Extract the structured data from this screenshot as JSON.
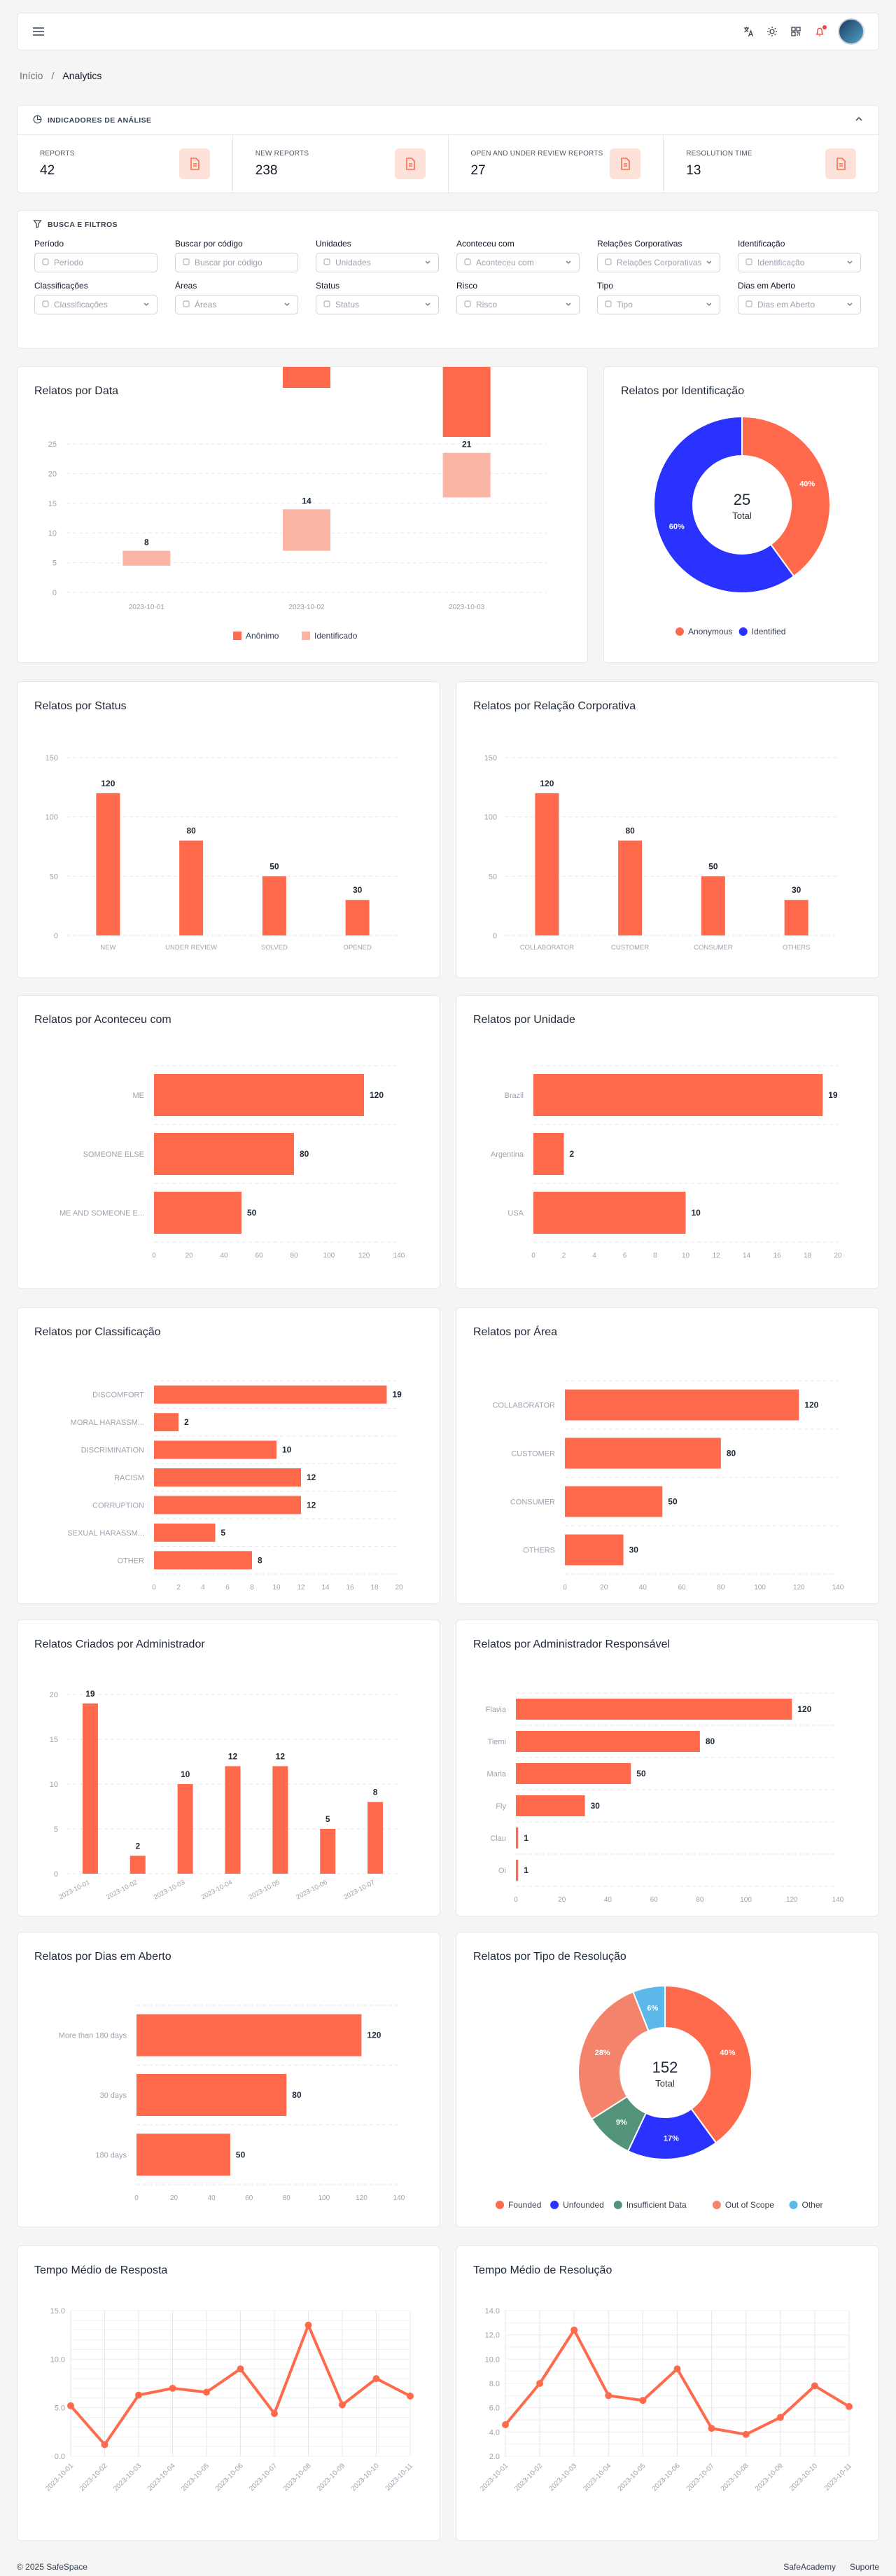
{
  "header": {
    "menu_icon": "hamburger-icon",
    "icons": [
      "translate-icon",
      "sun-icon",
      "qr-scan-icon",
      "bell-icon"
    ]
  },
  "breadcrumb": {
    "home": "Início",
    "sep": "/",
    "current": "Analytics"
  },
  "indicators": {
    "title": "INDICADORES DE ANÁLISE",
    "stats": [
      {
        "label": "REPORTS",
        "value": "42",
        "icon": "copy-icon"
      },
      {
        "label": "NEW REPORTS",
        "value": "238",
        "icon": "file-plus-icon"
      },
      {
        "label": "OPEN AND UNDER REVIEW REPORTS",
        "value": "27",
        "icon": "file-alert-icon"
      },
      {
        "label": "RESOLUTION TIME",
        "value": "13",
        "icon": "file-text-icon"
      }
    ]
  },
  "filters": {
    "title": "BUSCA E FILTROS",
    "fields": [
      {
        "label": "Período",
        "placeholder": "Período",
        "icon": "calendar-icon",
        "dropdown": false
      },
      {
        "label": "Buscar por código",
        "placeholder": "Buscar por código",
        "icon": "search-icon",
        "dropdown": false
      },
      {
        "label": "Unidades",
        "placeholder": "Unidades",
        "icon": "globe-icon",
        "dropdown": true
      },
      {
        "label": "Aconteceu com",
        "placeholder": "Aconteceu com",
        "icon": "user-icon",
        "dropdown": true
      },
      {
        "label": "Relações Corporativas",
        "placeholder": "Relações Corporativas",
        "icon": "link-icon",
        "dropdown": true
      },
      {
        "label": "Identificação",
        "placeholder": "Identificação",
        "icon": "id-icon",
        "dropdown": true
      },
      {
        "label": "Classificações",
        "placeholder": "Classificações",
        "icon": "tag-icon",
        "dropdown": true
      },
      {
        "label": "Áreas",
        "placeholder": "Áreas",
        "icon": "grid-icon",
        "dropdown": true
      },
      {
        "label": "Status",
        "placeholder": "Status",
        "icon": "status-icon",
        "dropdown": true
      },
      {
        "label": "Risco",
        "placeholder": "Risco",
        "icon": "risk-icon",
        "dropdown": true
      },
      {
        "label": "Tipo",
        "placeholder": "Tipo",
        "icon": "type-icon",
        "dropdown": true
      },
      {
        "label": "Dias em Aberto",
        "placeholder": "Dias em Aberto",
        "icon": "clock-icon",
        "dropdown": true
      }
    ]
  },
  "colors": {
    "primary": "#ff6a4d",
    "light": "#fbb5a5",
    "blue": "#2a32ff",
    "green": "#52937a",
    "sky": "#5bb8e8",
    "grid": "#e5e7eb"
  },
  "charts": {
    "por_data": {
      "title": "Relatos por Data",
      "type": "bar",
      "categories": [
        "2023-10-01",
        "2023-10-02",
        "2023-10-03"
      ],
      "series": [
        {
          "name": "Anônimo",
          "values": [
            null,
            null,
            null
          ]
        },
        {
          "name": "Identificado",
          "values": [
            8,
            14,
            21
          ]
        }
      ],
      "yticks": [
        0,
        5,
        10,
        15,
        20,
        25
      ],
      "legend": [
        "Anônimo",
        "Identificado"
      ]
    },
    "por_identificacao": {
      "title": "Relatos por Identificação",
      "type": "pie",
      "total": "25",
      "total_label": "Total",
      "slices": [
        {
          "name": "Anonymous",
          "value": 40,
          "label": "40%"
        },
        {
          "name": "Identified",
          "value": 60,
          "label": "60%"
        }
      ]
    },
    "por_status": {
      "title": "Relatos por Status",
      "type": "bar",
      "categories": [
        "NEW",
        "UNDER REVIEW",
        "SOLVED",
        "OPENED"
      ],
      "values": [
        120,
        80,
        50,
        30
      ],
      "yticks": [
        0,
        50,
        100,
        150
      ]
    },
    "por_relacao": {
      "title": "Relatos por Relação Corporativa",
      "type": "bar",
      "categories": [
        "COLLABORATOR",
        "CUSTOMER",
        "CONSUMER",
        "OTHERS"
      ],
      "values": [
        120,
        80,
        50,
        30
      ],
      "yticks": [
        0,
        50,
        100,
        150
      ]
    },
    "por_aconteceu": {
      "title": "Relatos por Aconteceu com",
      "type": "hbar",
      "categories": [
        "ME",
        "SOMEONE ELSE",
        "ME AND SOMEONE E..."
      ],
      "values": [
        120,
        80,
        50
      ],
      "xticks": [
        0,
        20,
        40,
        60,
        80,
        100,
        120,
        140
      ]
    },
    "por_unidade": {
      "title": "Relatos por Unidade",
      "type": "hbar",
      "categories": [
        "Brazil",
        "Argentina",
        "USA"
      ],
      "values": [
        19,
        2,
        10
      ],
      "xticks": [
        0,
        2,
        4,
        6,
        8,
        10,
        12,
        14,
        16,
        18,
        20
      ]
    },
    "por_classificacao": {
      "title": "Relatos por Classificação",
      "type": "hbar",
      "categories": [
        "DISCOMFORT",
        "MORAL HARASSM...",
        "DISCRIMINATION",
        "RACISM",
        "CORRUPTION",
        "SEXUAL HARASSM...",
        "OTHER"
      ],
      "values": [
        19,
        2,
        10,
        12,
        12,
        5,
        8
      ],
      "xticks": [
        0,
        2,
        4,
        6,
        8,
        10,
        12,
        14,
        16,
        18,
        20
      ]
    },
    "por_area": {
      "title": "Relatos por Área",
      "type": "hbar",
      "categories": [
        "COLLABORATOR",
        "CUSTOMER",
        "CONSUMER",
        "OTHERS"
      ],
      "values": [
        120,
        80,
        50,
        30
      ],
      "xticks": [
        0,
        20,
        40,
        60,
        80,
        100,
        120,
        140
      ]
    },
    "por_admin": {
      "title": "Relatos Criados por Administrador",
      "type": "bar",
      "categories": [
        "2023-10-01",
        "2023-10-02",
        "2023-10-03",
        "2023-10-04",
        "2023-10-05",
        "2023-10-06",
        "2023-10-07"
      ],
      "values": [
        19,
        2,
        10,
        12,
        12,
        5,
        8
      ],
      "yticks": [
        0,
        5,
        10,
        15,
        20
      ]
    },
    "por_admin_resp": {
      "title": "Relatos por Administrador Responsável",
      "type": "hbar",
      "categories": [
        "Flavia",
        "Tiemi",
        "Maria",
        "Fly",
        "Clau",
        "Oi"
      ],
      "values": [
        120,
        80,
        50,
        30,
        1,
        1
      ],
      "xticks": [
        0,
        20,
        40,
        60,
        80,
        100,
        120,
        140
      ]
    },
    "por_dias": {
      "title": "Relatos por Dias em Aberto",
      "type": "hbar",
      "categories": [
        "More than 180 days",
        "30 days",
        "180 days"
      ],
      "values": [
        120,
        80,
        50
      ],
      "xticks": [
        0,
        20,
        40,
        60,
        80,
        100,
        120,
        140
      ]
    },
    "por_tipo": {
      "title": "Relatos por Tipo de Resolução",
      "type": "pie",
      "total": "152",
      "total_label": "Total",
      "slices": [
        {
          "name": "Founded",
          "value": 40,
          "label": "40%"
        },
        {
          "name": "Unfounded",
          "value": 17,
          "label": "17%"
        },
        {
          "name": "Insufficient Data",
          "value": 9,
          "label": "9%"
        },
        {
          "name": "Out of Scope",
          "value": 28,
          "label": "28%"
        },
        {
          "name": "Other",
          "value": 6,
          "label": "6%"
        }
      ]
    },
    "tempo_resposta": {
      "title": "Tempo Médio de Resposta",
      "type": "line",
      "x": [
        "2023-10-01",
        "2023-10-02",
        "2023-10-03",
        "2023-10-04",
        "2023-10-05",
        "2023-10-06",
        "2023-10-07",
        "2023-10-08",
        "2023-10-09",
        "2023-10-10",
        "2023-10-11"
      ],
      "values": [
        5.2,
        1.2,
        6.3,
        7.0,
        6.6,
        9.0,
        4.4,
        13.5,
        5.3,
        8.0,
        6.2
      ],
      "yticks": [
        "0.0",
        "5.0",
        "10.0",
        "15.0"
      ],
      "ymax": 15
    },
    "tempo_resolucao": {
      "title": "Tempo Médio de Resolução",
      "type": "line",
      "x": [
        "2023-10-01",
        "2023-10-02",
        "2023-10-03",
        "2023-10-04",
        "2023-10-05",
        "2023-10-06",
        "2023-10-07",
        "2023-10-08",
        "2023-10-09",
        "2023-10-10",
        "2023-10-11"
      ],
      "values": [
        4.6,
        8.0,
        12.4,
        7.0,
        6.6,
        9.2,
        4.3,
        3.8,
        5.2,
        7.8,
        6.1
      ],
      "yticks": [
        "2.0",
        "4.0",
        "6.0",
        "8.0",
        "10.0",
        "12.0",
        "14.0"
      ],
      "ymin": 2,
      "ymax": 14
    }
  },
  "footer": {
    "copyright": "© 2025 SafeSpace",
    "links": [
      "SafeAcademy",
      "Suporte"
    ]
  }
}
